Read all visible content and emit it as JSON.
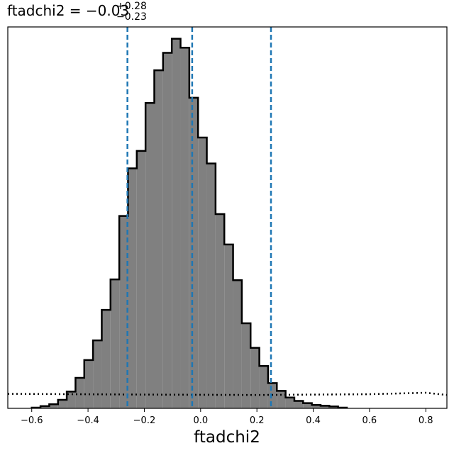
{
  "chart_data": {
    "type": "histogram",
    "title": {
      "prefix": "ftadchi2 = −0.03",
      "sup": "+0.28",
      "sub": "−0.23"
    },
    "xlabel": "ftadchi2",
    "ylabel": "",
    "xlim": [
      -0.685,
      0.875
    ],
    "ylim": [
      0,
      1.0
    ],
    "grid": false,
    "x_ticks": [
      -0.6,
      -0.4,
      -0.2,
      0.0,
      0.2,
      0.4,
      0.6,
      0.8
    ],
    "x_tick_labels": [
      "−0.6",
      "−0.4",
      "−0.2",
      "0.0",
      "0.2",
      "0.4",
      "0.6",
      "0.8"
    ],
    "histogram": {
      "bin_start": -0.6,
      "bin_width": 0.0311,
      "counts": [
        0.002,
        0.006,
        0.011,
        0.023,
        0.045,
        0.082,
        0.13,
        0.183,
        0.265,
        0.347,
        0.518,
        0.646,
        0.693,
        0.822,
        0.91,
        0.957,
        0.995,
        0.971,
        0.836,
        0.729,
        0.659,
        0.523,
        0.441,
        0.345,
        0.229,
        0.163,
        0.114,
        0.068,
        0.047,
        0.029,
        0.02,
        0.014,
        0.009,
        0.007,
        0.005,
        0.002
      ],
      "fill_color": "#808080",
      "edge_color": "#000000"
    },
    "prior": {
      "style": "dotted",
      "color": "#000000",
      "x": [
        -0.685,
        -0.2,
        0.2,
        0.6,
        0.8,
        0.875
      ],
      "y": [
        0.039,
        0.037,
        0.036,
        0.038,
        0.042,
        0.036
      ]
    },
    "quantile_lines": {
      "values": [
        -0.26,
        -0.03,
        0.25
      ],
      "color": "#1f77b4",
      "style": "dashed"
    }
  }
}
